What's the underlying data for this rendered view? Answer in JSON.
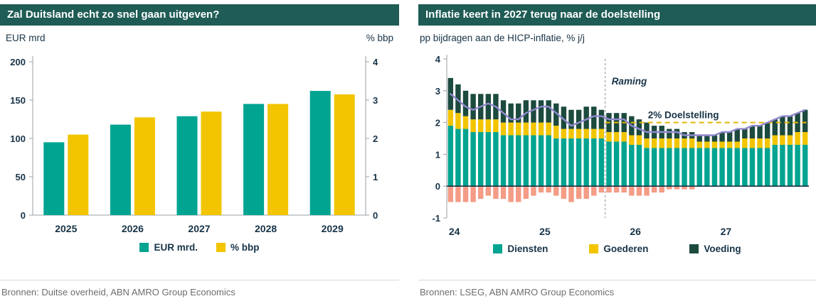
{
  "colors": {
    "header_bg": "#1F5C55",
    "header_text": "#FFFFFF",
    "navy": "#173347",
    "teal": "#00A491",
    "yellow": "#F2C500",
    "darkgreen": "#1C4A3E",
    "salmon": "#F49C85",
    "purple": "#9088CC",
    "target_yellow": "#E3B505",
    "axis": "#9AA0A4",
    "zero_line": "#173347",
    "forecast_line": "#8A8A8A",
    "source_text": "#6E6E6E"
  },
  "chart_data": [
    {
      "id": "german-spending",
      "type": "bar",
      "title": "Zal Duitsland echt zo snel gaan uitgeven?",
      "left_axis_label": "EUR mrd",
      "right_axis_label": "% bbp",
      "categories": [
        "2025",
        "2026",
        "2027",
        "2028",
        "2029"
      ],
      "series": [
        {
          "name": "EUR mrd.",
          "key": "eur-mrd",
          "axis": "left",
          "color": "teal",
          "values": [
            95,
            118,
            129,
            145,
            162
          ]
        },
        {
          "name": "% bbp",
          "key": "pct-bbp",
          "axis": "right",
          "color": "yellow",
          "values": [
            2.1,
            2.55,
            2.7,
            2.9,
            3.15
          ]
        }
      ],
      "left_ylim": [
        0,
        200
      ],
      "left_ticks": [
        0,
        50,
        100,
        150,
        200
      ],
      "right_ylim": [
        0,
        4
      ],
      "right_ticks": [
        0,
        1,
        2,
        3,
        4
      ],
      "grid": false,
      "legend": [
        {
          "label": "EUR mrd.",
          "color": "teal"
        },
        {
          "label": "% bbp",
          "color": "yellow"
        }
      ],
      "source": "Bronnen: Duitse overheid, ABN AMRO Group Economics"
    },
    {
      "id": "inflation-contributions",
      "type": "stacked-bar-line",
      "title": "Inflatie keert in 2027 terug naar de doelstelling",
      "subtitle": "pp bijdragen aan de HICP-inflatie, % j/j",
      "x_year_labels": [
        "24",
        "25",
        "26",
        "27"
      ],
      "months_per_year": 12,
      "ylim": [
        -1,
        4
      ],
      "ticks": [
        -1,
        0,
        1,
        2,
        3,
        4
      ],
      "grid": false,
      "series": [
        {
          "name": "Diensten",
          "key": "diensten",
          "color": "teal",
          "in_legend": true,
          "values": [
            1.9,
            1.8,
            1.8,
            1.7,
            1.7,
            1.7,
            1.7,
            1.6,
            1.6,
            1.6,
            1.6,
            1.6,
            1.6,
            1.6,
            1.5,
            1.5,
            1.5,
            1.5,
            1.5,
            1.5,
            1.5,
            1.4,
            1.4,
            1.4,
            1.3,
            1.3,
            1.2,
            1.2,
            1.2,
            1.2,
            1.2,
            1.2,
            1.2,
            1.2,
            1.2,
            1.2,
            1.2,
            1.2,
            1.2,
            1.2,
            1.2,
            1.2,
            1.2,
            1.3,
            1.3,
            1.3,
            1.3,
            1.3
          ]
        },
        {
          "name": "Goederen",
          "key": "goederen",
          "color": "yellow",
          "in_legend": true,
          "values": [
            0.5,
            0.5,
            0.4,
            0.4,
            0.4,
            0.4,
            0.4,
            0.4,
            0.4,
            0.4,
            0.4,
            0.4,
            0.4,
            0.4,
            0.4,
            0.3,
            0.3,
            0.3,
            0.3,
            0.3,
            0.3,
            0.3,
            0.3,
            0.3,
            0.3,
            0.3,
            0.3,
            0.3,
            0.3,
            0.3,
            0.3,
            0.3,
            0.3,
            0.2,
            0.2,
            0.2,
            0.2,
            0.2,
            0.2,
            0.3,
            0.3,
            0.3,
            0.3,
            0.3,
            0.3,
            0.3,
            0.4,
            0.4
          ]
        },
        {
          "name": "Voeding",
          "key": "voeding",
          "color": "darkgreen",
          "in_legend": true,
          "values": [
            1.0,
            0.9,
            0.8,
            0.8,
            0.8,
            0.8,
            0.8,
            0.7,
            0.6,
            0.6,
            0.7,
            0.7,
            0.7,
            0.7,
            0.7,
            0.7,
            0.6,
            0.6,
            0.7,
            0.7,
            0.6,
            0.6,
            0.6,
            0.6,
            0.6,
            0.5,
            0.5,
            0.4,
            0.4,
            0.3,
            0.3,
            0.2,
            0.2,
            0.2,
            0.2,
            0.2,
            0.3,
            0.3,
            0.4,
            0.3,
            0.4,
            0.4,
            0.5,
            0.5,
            0.6,
            0.6,
            0.6,
            0.7
          ]
        },
        {
          "name": "",
          "key": "negatief",
          "color": "salmon",
          "in_legend": false,
          "values": [
            -0.5,
            -0.5,
            -0.5,
            -0.5,
            -0.4,
            -0.3,
            -0.4,
            -0.4,
            -0.5,
            -0.5,
            -0.4,
            -0.3,
            -0.2,
            -0.2,
            -0.3,
            -0.4,
            -0.5,
            -0.4,
            -0.4,
            -0.3,
            -0.2,
            -0.2,
            -0.2,
            -0.2,
            -0.3,
            -0.3,
            -0.3,
            -0.2,
            -0.2,
            -0.1,
            -0.1,
            -0.1,
            -0.1,
            0,
            0,
            0,
            0,
            0,
            0,
            0,
            0,
            0,
            0,
            0,
            0,
            0,
            0,
            0
          ]
        }
      ],
      "line": {
        "name": "HICP-inflatie totaal",
        "color": "purple",
        "values": [
          2.9,
          2.7,
          2.5,
          2.4,
          2.5,
          2.6,
          2.5,
          2.3,
          2.1,
          2.1,
          2.3,
          2.4,
          2.5,
          2.5,
          2.3,
          2.1,
          1.9,
          2.0,
          2.1,
          2.2,
          2.2,
          2.1,
          2.1,
          2.1,
          1.9,
          1.8,
          1.7,
          1.7,
          1.7,
          1.7,
          1.7,
          1.6,
          1.6,
          1.6,
          1.6,
          1.6,
          1.7,
          1.7,
          1.8,
          1.8,
          1.9,
          1.9,
          2.0,
          2.1,
          2.2,
          2.2,
          2.3,
          2.4
        ]
      },
      "target_line": {
        "value": 2,
        "label": "2% Doelstelling"
      },
      "forecast": {
        "label": "Raming",
        "start_index": 21
      },
      "legend": [
        {
          "label": "Diensten",
          "color": "teal"
        },
        {
          "label": "Goederen",
          "color": "yellow"
        },
        {
          "label": "Voeding",
          "color": "darkgreen"
        }
      ],
      "source": "Bronnen: LSEG, ABN AMRO Group Economics"
    }
  ]
}
